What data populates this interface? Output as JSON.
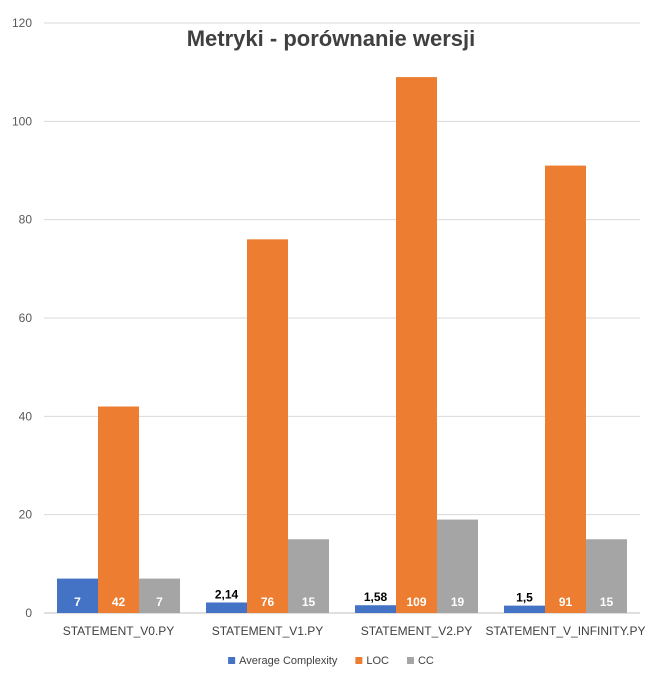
{
  "chart_data": {
    "type": "bar",
    "title": "Metryki - porównanie wersji",
    "categories": [
      "STATEMENT_V0.PY",
      "STATEMENT_V1.PY",
      "STATEMENT_V2.PY",
      "STATEMENT_V_INFINITY.PY"
    ],
    "series": [
      {
        "name": "Average Complexity",
        "color": "#4472C4",
        "values": [
          7,
          2.14,
          1.58,
          1.5
        ],
        "labels": [
          "7",
          "2,14",
          "1,58",
          "1,5"
        ]
      },
      {
        "name": "LOC",
        "color": "#ED7D31",
        "values": [
          42,
          76,
          109,
          91
        ],
        "labels": [
          "42",
          "76",
          "109",
          "91"
        ]
      },
      {
        "name": "CC",
        "color": "#A5A5A5",
        "values": [
          7,
          15,
          19,
          15
        ],
        "labels": [
          "7",
          "15",
          "19",
          "15"
        ]
      }
    ],
    "ylim": [
      0,
      120
    ],
    "yticks": [
      0,
      20,
      40,
      60,
      80,
      100,
      120
    ],
    "xlabel": "",
    "ylabel": "",
    "grid": true,
    "legend": "bottom",
    "colors": {
      "gridline": "#D9D9D9",
      "axis": "#BFBFBF"
    }
  }
}
